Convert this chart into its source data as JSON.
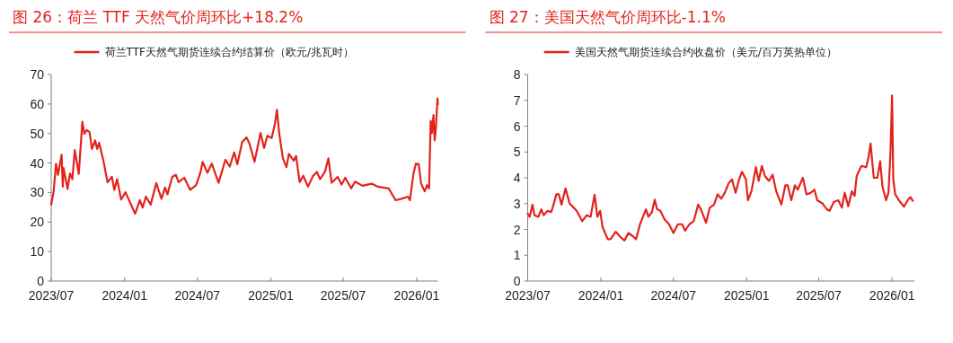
{
  "chart_data": [
    {
      "type": "line",
      "title": "图 26：荷兰 TTF 天然气价周环比+18.2%",
      "legend": "top",
      "xlim": [
        "2023-07-01",
        "2026-02-23"
      ],
      "ylim": [
        0,
        70
      ],
      "yticks": [
        0,
        10,
        20,
        30,
        40,
        50,
        60,
        70
      ],
      "xticks": [
        {
          "value": "2023-07",
          "label": "2023/07"
        },
        {
          "value": "2024-01",
          "label": "2024/01"
        },
        {
          "value": "2024-07",
          "label": "2024/07"
        },
        {
          "value": "2025-01",
          "label": "2025/01"
        },
        {
          "value": "2025-07",
          "label": "2025/07"
        },
        {
          "value": "2026-01",
          "label": "2026/01"
        }
      ],
      "series": [
        {
          "name": "荷兰TTF天然气期货连续合约结算价（欧元/兆瓦时）",
          "color": "#e3231b",
          "x": [
            "2023-07-01",
            "2023-07-07",
            "2023-07-13",
            "2023-07-18",
            "2023-07-27",
            "2023-07-30",
            "2023-08-01",
            "2023-08-11",
            "2023-08-17",
            "2023-08-23",
            "2023-08-29",
            "2023-09-08",
            "2023-09-17",
            "2023-09-22",
            "2023-09-28",
            "2023-10-05",
            "2023-10-11",
            "2023-10-19",
            "2023-10-24",
            "2023-10-29",
            "2023-11-09",
            "2023-11-19",
            "2023-11-30",
            "2023-12-06",
            "2023-12-13",
            "2023-12-23",
            "2024-01-03",
            "2024-01-12",
            "2024-01-27",
            "2024-02-08",
            "2024-02-15",
            "2024-02-23",
            "2024-03-06",
            "2024-03-20",
            "2024-04-02",
            "2024-04-11",
            "2024-04-17",
            "2024-04-29",
            "2024-05-08",
            "2024-05-15",
            "2024-05-29",
            "2024-06-13",
            "2024-06-28",
            "2024-07-09",
            "2024-07-14",
            "2024-07-26",
            "2024-08-06",
            "2024-08-23",
            "2024-09-09",
            "2024-09-20",
            "2024-10-01",
            "2024-10-09",
            "2024-10-21",
            "2024-11-01",
            "2024-11-08",
            "2024-11-21",
            "2024-12-06",
            "2024-12-15",
            "2024-12-23",
            "2025-01-03",
            "2025-01-11",
            "2025-01-16",
            "2025-01-22",
            "2025-01-31",
            "2025-02-09",
            "2025-02-15",
            "2025-02-27",
            "2025-03-05",
            "2025-03-14",
            "2025-03-23",
            "2025-04-04",
            "2025-04-16",
            "2025-04-26",
            "2025-05-04",
            "2025-05-16",
            "2025-05-25",
            "2025-06-02",
            "2025-06-17",
            "2025-06-27",
            "2025-07-06",
            "2025-07-21",
            "2025-07-31",
            "2025-08-18",
            "2025-09-10",
            "2025-09-25",
            "2025-10-23",
            "2025-11-09",
            "2025-11-24",
            "2025-12-10",
            "2025-12-15",
            "2025-12-24",
            "2025-12-30",
            "2026-01-06",
            "2026-01-12",
            "2026-01-21",
            "2026-01-27",
            "2026-02-01",
            "2026-02-05",
            "2026-02-08",
            "2026-02-12",
            "2026-02-15",
            "2026-02-18",
            "2026-02-22",
            "2026-02-23"
          ],
          "values": [
            25.9,
            30.2,
            39.8,
            36,
            42.8,
            32,
            38.3,
            31.2,
            36.5,
            34.5,
            44.4,
            36.3,
            54,
            49.9,
            51.2,
            50.5,
            44.8,
            47.7,
            44.8,
            46.9,
            40.6,
            33.5,
            35.3,
            30.9,
            34.5,
            27.6,
            30.1,
            27.4,
            22.8,
            27.4,
            24.9,
            28.6,
            25.9,
            33.2,
            27.9,
            31.7,
            29.4,
            35.3,
            36,
            33.5,
            35,
            30.9,
            32.5,
            37,
            40.4,
            36.7,
            39.8,
            33.3,
            41.1,
            38.8,
            43.6,
            39.6,
            47.1,
            48.7,
            46.7,
            40.4,
            50.2,
            45.1,
            49.2,
            48.5,
            53.3,
            58,
            49.9,
            41.6,
            38.6,
            43.1,
            40.8,
            42.4,
            33.5,
            35.7,
            32,
            35.5,
            37,
            34.5,
            37,
            41.6,
            33.3,
            35.3,
            32.7,
            35,
            31.4,
            33.7,
            32.3,
            33,
            32,
            31.4,
            27.4,
            27.9,
            28.6,
            27.4,
            36.5,
            39.8,
            39.6,
            33,
            30.4,
            32.5,
            31.4,
            54.3,
            50.2,
            56.3,
            47.7,
            51.7,
            61.9,
            59.9
          ]
        }
      ]
    },
    {
      "type": "line",
      "title": "图 27：美国天然气价周环比-1.1%",
      "legend": "top",
      "xlim": [
        "2023-07-01",
        "2026-02-26"
      ],
      "ylim": [
        0,
        8
      ],
      "yticks": [
        0,
        1,
        2,
        3,
        4,
        5,
        6,
        7,
        8
      ],
      "xticks": [
        {
          "value": "2023-07",
          "label": "2023/07"
        },
        {
          "value": "2024-01",
          "label": "2024/01"
        },
        {
          "value": "2024-07",
          "label": "2024/07"
        },
        {
          "value": "2025-01",
          "label": "2025/01"
        },
        {
          "value": "2025-07",
          "label": "2025/07"
        },
        {
          "value": "2026-01",
          "label": "2026/01"
        }
      ],
      "series": [
        {
          "name": "美国天然气期货连续合约收盘价（美元/百万英热单位）",
          "color": "#e3231b",
          "x": [
            "2023-07-01",
            "2023-07-06",
            "2023-07-13",
            "2023-07-18",
            "2023-07-28",
            "2023-08-04",
            "2023-08-10",
            "2023-08-20",
            "2023-08-29",
            "2023-09-04",
            "2023-09-11",
            "2023-09-17",
            "2023-09-24",
            "2023-10-04",
            "2023-10-14",
            "2023-10-21",
            "2023-11-01",
            "2023-11-15",
            "2023-11-26",
            "2023-12-06",
            "2023-12-16",
            "2023-12-23",
            "2023-12-30",
            "2024-01-05",
            "2024-01-18",
            "2024-01-25",
            "2024-02-07",
            "2024-02-18",
            "2024-02-29",
            "2024-03-10",
            "2024-03-21",
            "2024-03-29",
            "2024-04-08",
            "2024-04-23",
            "2024-04-29",
            "2024-05-08",
            "2024-05-15",
            "2024-05-21",
            "2024-05-29",
            "2024-06-09",
            "2024-06-20",
            "2024-07-01",
            "2024-07-12",
            "2024-07-23",
            "2024-07-30",
            "2024-08-10",
            "2024-08-21",
            "2024-09-01",
            "2024-09-08",
            "2024-09-21",
            "2024-09-30",
            "2024-10-11",
            "2024-10-20",
            "2024-10-29",
            "2024-11-07",
            "2024-11-16",
            "2024-11-25",
            "2024-12-04",
            "2024-12-13",
            "2024-12-20",
            "2024-12-30",
            "2025-01-04",
            "2025-01-13",
            "2025-01-24",
            "2025-01-31",
            "2025-02-08",
            "2025-02-16",
            "2025-02-26",
            "2025-03-07",
            "2025-03-16",
            "2025-03-29",
            "2025-04-08",
            "2025-04-14",
            "2025-04-23",
            "2025-05-02",
            "2025-05-09",
            "2025-05-22",
            "2025-05-31",
            "2025-06-11",
            "2025-06-20",
            "2025-06-27",
            "2025-07-10",
            "2025-07-21",
            "2025-07-28",
            "2025-08-08",
            "2025-08-19",
            "2025-08-28",
            "2025-09-04",
            "2025-09-13",
            "2025-09-22",
            "2025-09-29",
            "2025-10-04",
            "2025-10-16",
            "2025-10-28",
            "2025-11-03",
            "2025-11-08",
            "2025-11-16",
            "2025-11-25",
            "2025-12-02",
            "2025-12-08",
            "2025-12-17",
            "2025-12-23",
            "2025-12-28",
            "2026-01-01",
            "2026-01-04",
            "2026-01-09",
            "2026-01-18",
            "2026-01-31",
            "2026-02-09",
            "2026-02-16",
            "2026-02-22"
          ],
          "values": [
            2.61,
            2.49,
            2.96,
            2.55,
            2.49,
            2.78,
            2.55,
            2.72,
            2.67,
            2.96,
            3.36,
            3.36,
            2.96,
            3.59,
            3.01,
            2.9,
            2.72,
            2.32,
            2.55,
            2.49,
            3.34,
            2.49,
            2.72,
            2.09,
            1.62,
            1.62,
            1.91,
            1.72,
            1.57,
            1.86,
            1.74,
            1.62,
            2.2,
            2.78,
            2.49,
            2.67,
            3.15,
            2.78,
            2.72,
            2.38,
            2.2,
            1.86,
            2.2,
            2.2,
            1.95,
            2.2,
            2.32,
            2.96,
            2.78,
            2.26,
            2.84,
            2.96,
            3.36,
            3.19,
            3.42,
            3.77,
            3.94,
            3.42,
            3.94,
            4.23,
            3.94,
            3.13,
            3.48,
            4.41,
            3.88,
            4.46,
            4.06,
            3.88,
            4.12,
            3.48,
            2.96,
            3.71,
            3.71,
            3.13,
            3.71,
            3.54,
            4,
            3.36,
            3.42,
            3.54,
            3.13,
            3.01,
            2.78,
            2.72,
            3.07,
            3.13,
            2.84,
            3.42,
            2.9,
            3.48,
            3.3,
            4.06,
            4.46,
            4.41,
            4.81,
            5.33,
            4,
            4,
            4.64,
            3.65,
            3.13,
            3.42,
            4.99,
            7.19,
            3.94,
            3.36,
            3.13,
            2.88,
            3.13,
            3.25,
            3.11
          ]
        }
      ]
    }
  ]
}
